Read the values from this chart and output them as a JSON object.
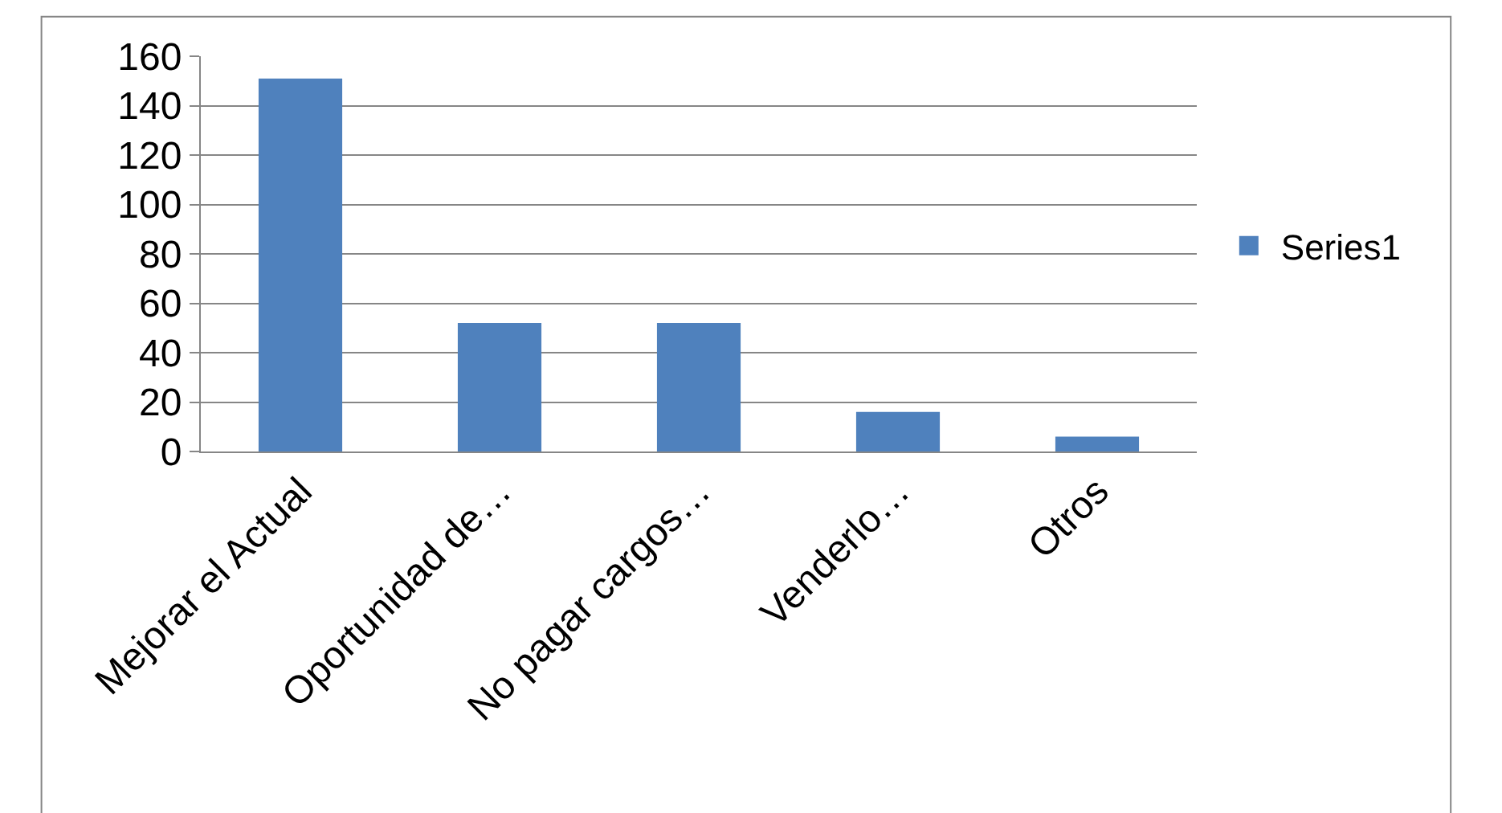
{
  "chart_data": {
    "type": "bar",
    "categories": [
      "Mejorar el Actual",
      "Oportunidad de…",
      "No pagar cargos…",
      "Venderlo…",
      "Otros"
    ],
    "series": [
      {
        "name": "Series1",
        "color": "#4f81bd",
        "values": [
          151,
          52,
          52,
          16,
          6
        ]
      }
    ],
    "ylim": [
      0,
      160
    ],
    "yticks": [
      0,
      20,
      40,
      60,
      80,
      100,
      120,
      140,
      160
    ],
    "grid": "y",
    "legend": "right"
  }
}
